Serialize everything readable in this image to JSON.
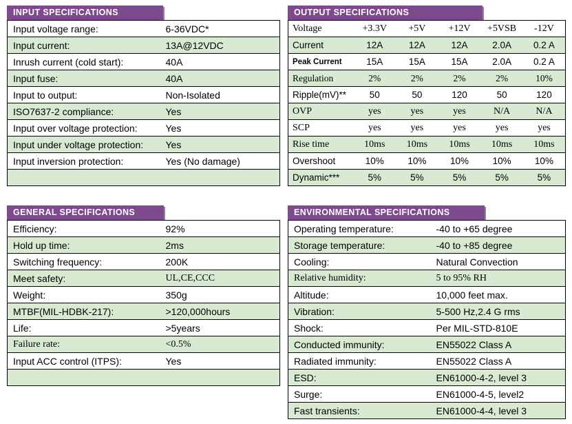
{
  "colors": {
    "header_bg": "#7c4a8d",
    "row_alt": "#d9ead3",
    "border": "#000000",
    "header_text": "#ffffff"
  },
  "tables": {
    "input": {
      "title": "INPUT SPECIFICATIONS",
      "rows": [
        {
          "label": "Input voltage range:",
          "value": "6-36VDC*"
        },
        {
          "label": "Input current:",
          "value": "13A@12VDC"
        },
        {
          "label": "Inrush current (cold start):",
          "value": "40A"
        },
        {
          "label": "Input fuse:",
          "value": "40A"
        },
        {
          "label": "Input to output:",
          "value": "Non-Isolated"
        },
        {
          "label": "ISO7637-2 compliance:",
          "value": "Yes"
        },
        {
          "label": "Input over voltage protection:",
          "value": "Yes"
        },
        {
          "label": "Input under voltage protection:",
          "value": "Yes"
        },
        {
          "label": "Input inversion protection:",
          "value": "Yes (No damage)"
        },
        {
          "label": "",
          "value": ""
        }
      ]
    },
    "output": {
      "title": "OUTPUT SPECIFICATIONS",
      "rows": [
        {
          "cells": [
            "Voltage",
            "+3.3V",
            "+5V",
            "+12V",
            "+5VSB",
            "-12V"
          ]
        },
        {
          "cells": [
            "Current",
            "12A",
            "12A",
            "12A",
            "2.0A",
            "0.2 A"
          ]
        },
        {
          "cells": [
            "Peak Current",
            "15A",
            "15A",
            "15A",
            "2.0A",
            "0.2 A"
          ]
        },
        {
          "cells": [
            "Regulation",
            "2%",
            "2%",
            "2%",
            "2%",
            "10%"
          ]
        },
        {
          "cells": [
            "Ripple(mV)**",
            "50",
            "50",
            "120",
            "50",
            "120"
          ]
        },
        {
          "cells": [
            "OVP",
            "yes",
            "yes",
            "yes",
            "N/A",
            "N/A"
          ]
        },
        {
          "cells": [
            "SCP",
            "yes",
            "yes",
            "yes",
            "yes",
            "yes"
          ]
        },
        {
          "cells": [
            "Rise time",
            "10ms",
            "10ms",
            "10ms",
            "10ms",
            "10ms"
          ]
        },
        {
          "cells": [
            "Overshoot",
            "10%",
            "10%",
            "10%",
            "10%",
            "10%"
          ]
        },
        {
          "cells": [
            "Dynamic***",
            "5%",
            "5%",
            "5%",
            "5%",
            "5%"
          ]
        }
      ]
    },
    "general": {
      "title": "GENERAL SPECIFICATIONS",
      "rows": [
        {
          "label": "Efficiency:",
          "value": "92%"
        },
        {
          "label": "Hold up time:",
          "value": "2ms"
        },
        {
          "label": "Switching frequency:",
          "value": "200K"
        },
        {
          "label": "Meet safety:",
          "value": "UL,CE,CCC"
        },
        {
          "label": "Weight:",
          "value": "350g"
        },
        {
          "label": "MTBF(MIL-HDBK-217):",
          "value": ">120,000hours"
        },
        {
          "label": "Life:",
          "value": ">5years"
        },
        {
          "label": "Failure rate:",
          "value": "<0.5%"
        },
        {
          "label": "Input ACC control (ITPS):",
          "value": "Yes"
        },
        {
          "label": "",
          "value": ""
        }
      ]
    },
    "environmental": {
      "title": "ENVIRONMENTAL SPECIFICATIONS",
      "rows": [
        {
          "label": "Operating temperature:",
          "value": "-40  to +65 degree"
        },
        {
          "label": "Storage temperature:",
          "value": "-40  to +85 degree"
        },
        {
          "label": "Cooling:",
          "value": "Natural Convection"
        },
        {
          "label": "Relative humidity:",
          "value": "5 to 95% RH"
        },
        {
          "label": "Altitude:",
          "value": "10,000 feet max."
        },
        {
          "label": "Vibration:",
          "value": "5-500 Hz,2.4 G rms"
        },
        {
          "label": "Shock:",
          "value": "Per MIL-STD-810E"
        },
        {
          "label": "Conducted immunity:",
          "value": "EN55022 Class A"
        },
        {
          "label": "Radiated immunity:",
          "value": "EN55022 Class A"
        },
        {
          "label": "ESD:",
          "value": "EN61000-4-2, level 3"
        },
        {
          "label": "Surge:",
          "value": "EN61000-4-5, level2"
        },
        {
          "label": "Fast transients:",
          "value": "EN61000-4-4, level 3"
        }
      ]
    }
  }
}
